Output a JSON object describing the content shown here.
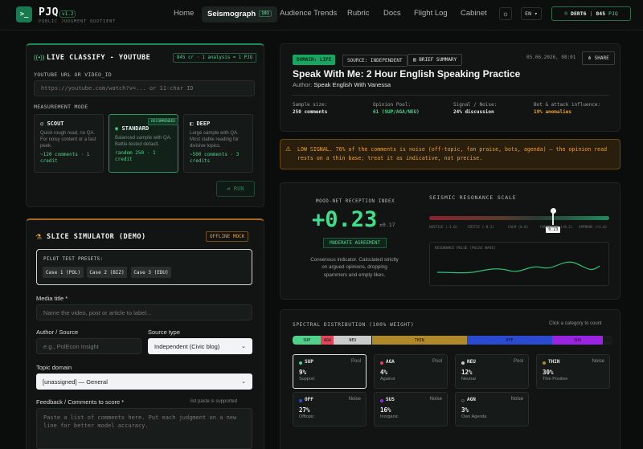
{
  "app": {
    "logo_glyph": ">_",
    "name": "PJQ",
    "version": "v1.2",
    "subtitle": "PUBLIC JUDGMENT QUOTIENT"
  },
  "nav": {
    "items": [
      {
        "label": "Home"
      },
      {
        "label": "Seismograph",
        "badge": "101"
      },
      {
        "label": "Audience Trends"
      },
      {
        "label": "Rubric"
      },
      {
        "label": "Docs"
      },
      {
        "label": "Flight Log"
      },
      {
        "label": "Cabinet"
      }
    ],
    "theme_icon": "sun-icon",
    "language": "EN",
    "user": {
      "name": "DERT6",
      "separator": "|",
      "credits": "845",
      "unit": "PJQ"
    }
  },
  "classify": {
    "title": "LIVE CLASSIFY - YOUTUBE",
    "credit_chip": "845 cr · 1 analysis = 1 PJQ",
    "url_label": "YOUTUBE URL OR VIDEO_ID",
    "url_placeholder": "https://youtube.com/watch?v=... or 11-char ID",
    "mode_label": "MEASUREMENT MODE",
    "modes": [
      {
        "name": "SCOUT",
        "desc": "Quick rough read, no QA. For noisy content or a fast peek.",
        "cost": "~120 comments · 1 credit"
      },
      {
        "name": "STANDARD",
        "badge": "RECOMMENDED",
        "desc": "Balanced sample with QA. Battle-tested default.",
        "cost": "random 250 · 1 credit"
      },
      {
        "name": "DEEP",
        "desc": "Large sample with QA. Most stable reading for divisive topics.",
        "cost": "~500 comments · 3 credits"
      }
    ],
    "run_label": "RUN"
  },
  "simulator": {
    "title": "SLICE SIMULATOR (DEMO)",
    "badge": "OFFLINE MOCK",
    "presets_label": "PILOT TEST PRESETS:",
    "presets": [
      "Case 1 (POL)",
      "Case 2 (BIZ)",
      "Case 3 (EDU)"
    ],
    "media_title_label": "Media title *",
    "media_title_placeholder": "Name the video, post or article to label...",
    "author_label": "Author / Source",
    "author_placeholder": "e.g., PolEcon Insight",
    "source_type_label": "Source type",
    "source_type_value": "Independent (Civic blog)",
    "topic_label": "Topic domain",
    "topic_value": "[unassigned] — General",
    "feedback_label": "Feedback / Comments to score *",
    "feedback_hint": "list paste is supported",
    "feedback_placeholder": "Paste a list of comments here. Put each judgment on a new line for better model accuracy."
  },
  "report": {
    "domain_tag": "DOMAIN: LIFE",
    "source_tag": "SOURCE: INDEPENDENT",
    "brief_label": "BRIEF SUMMARY",
    "timestamp": "05.06.2026, 08:01",
    "share_label": "SHARE",
    "title": "Speak With Me: 2 Hour English Speaking Practice",
    "author_prefix": "Author:",
    "author": "Speak English With Vanessa",
    "stats": [
      {
        "label": "Sample size:",
        "value": "250 comments",
        "color": "#e9ecea"
      },
      {
        "label": "Opinion Pool:",
        "value": "61 (SUP/AGA/NEU)",
        "color": "#4fd18b"
      },
      {
        "label": "Signal / Noise:",
        "value": "24% discussion",
        "color": "#e9ecea"
      },
      {
        "label": "Bot & attack influence:",
        "value": "19% anomalies",
        "color": "#e8a13b"
      }
    ]
  },
  "alert": {
    "text": "LOW SIGNAL. 76% of the comments is noise (off-topic, fan praise, bots, agenda) — the opinion read rests on a thin base; treat it as indicative, not precise."
  },
  "reception": {
    "title": "MOOD-NET RECEPTION INDEX",
    "value": "+0.23",
    "error": "±0.17",
    "verdict": "MODERATE AGREEMENT",
    "desc": "Consensus indicator. Calculated strictly on argued opinions, dropping spammers and empty likes.",
    "scale_title": "SEISMIC RESONANCE SCALE",
    "scale_marker": "0.23",
    "scale_value": 0.23,
    "scale_labels": [
      "HOSTILE (-1.0)",
      "CRITIC (-0.2)",
      "CALM (0.0)",
      "FAVORABLE (+0.2)",
      "APPROVE (+1.0)"
    ],
    "pulse_label": "RESONANCE PULSE (PULSE WAVE)"
  },
  "spectral": {
    "title": "SPECTRAL DISTRIBUTION (100% WEIGHT)",
    "hint": "Click a category to count",
    "bar": [
      {
        "label": "SUP",
        "pct": 9,
        "color": "#4fd18b"
      },
      {
        "label": "AGA",
        "pct": 4,
        "color": "#e0455a"
      },
      {
        "label": "NEU",
        "pct": 12,
        "color": "#c9ccca"
      },
      {
        "label": "THIN",
        "pct": 30,
        "color": "#b08a2a"
      },
      {
        "label": "OFF",
        "pct": 27,
        "color": "#2a4bd0"
      },
      {
        "label": "SUS",
        "pct": 16,
        "color": "#9b24e0"
      },
      {
        "label": "AGN",
        "pct": 3,
        "color": "#1a1d1c"
      }
    ],
    "cards": [
      {
        "code": "SUP",
        "group": "Pool",
        "value": "9%",
        "desc": "Support",
        "color": "#4fd18b"
      },
      {
        "code": "AGA",
        "group": "Pool",
        "value": "4%",
        "desc": "Against",
        "color": "#e0455a"
      },
      {
        "code": "NEU",
        "group": "Pool",
        "value": "12%",
        "desc": "Neutral",
        "color": "#c9ccca"
      },
      {
        "code": "THIN",
        "group": "Noise",
        "value": "30%",
        "desc": "Thin Positive",
        "color": "#b08a2a"
      },
      {
        "code": "OFF",
        "group": "Noise",
        "value": "27%",
        "desc": "Offtopic",
        "color": "#2a4bd0"
      },
      {
        "code": "SUS",
        "group": "Noise",
        "value": "16%",
        "desc": "Inorganic",
        "color": "#9b24e0"
      },
      {
        "code": "AGN",
        "group": "Noise",
        "value": "3%",
        "desc": "Own Agenda",
        "color": "#1a1d1c"
      }
    ]
  }
}
